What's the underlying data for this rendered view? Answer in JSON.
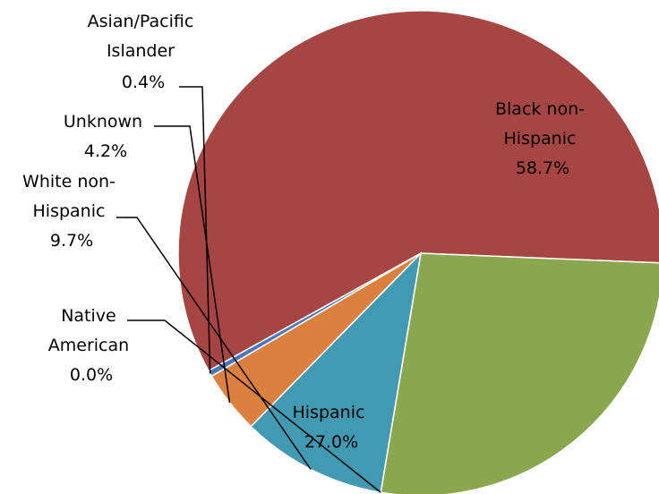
{
  "chart_data": {
    "type": "pie",
    "title": "",
    "slices": [
      {
        "label_lines": [
          "Black non-",
          "Hispanic"
        ],
        "pct_text": "58.7%",
        "value": 58.7,
        "color": "#A64644"
      },
      {
        "label_lines": [
          "Hispanic"
        ],
        "pct_text": "27.0%",
        "value": 27.0,
        "color": "#8AA64E"
      },
      {
        "label_lines": [
          "Native",
          "American"
        ],
        "pct_text": "0.0%",
        "value": 0.0,
        "color": "#8064A2"
      },
      {
        "label_lines": [
          "White non-",
          "Hispanic"
        ],
        "pct_text": "9.7%",
        "value": 9.7,
        "color": "#4299B2"
      },
      {
        "label_lines": [
          "Unknown"
        ],
        "pct_text": "4.2%",
        "value": 4.2,
        "color": "#DA8140"
      },
      {
        "label_lines": [
          "Asian/Pacific",
          "Islander"
        ],
        "pct_text": "0.4%",
        "value": 0.4,
        "color": "#4A76BA"
      }
    ],
    "legend": "none"
  }
}
